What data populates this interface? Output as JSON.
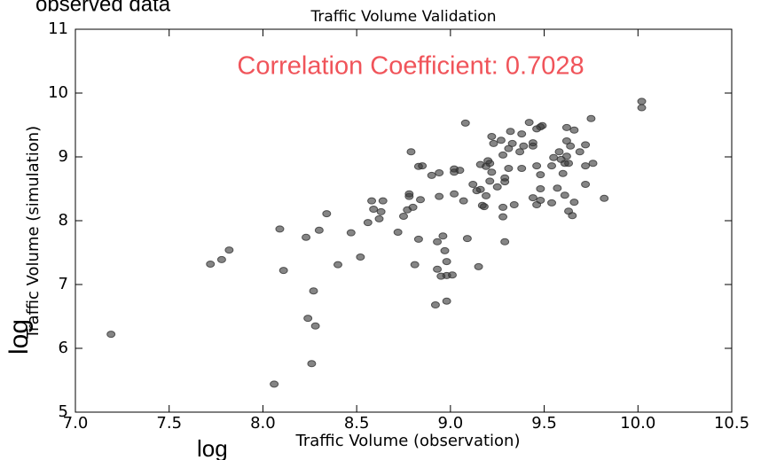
{
  "chart_data": {
    "type": "scatter",
    "caption": "observed data",
    "title": "Traffic Volume Validation",
    "annotation": "Correlation Coefficient: 0.7028",
    "annotation_color": "#f0545a",
    "xlabel": "Traffic Volume (observation)",
    "xlabel_prefix": "log",
    "ylabel": "Traffic Volume (simulation)",
    "ylabel_prefix": "log",
    "color": "#333333",
    "xlim": [
      7,
      10.5
    ],
    "ylim": [
      5,
      11
    ],
    "xticks": [
      {
        "value": 7,
        "label": "7.0"
      },
      7.5,
      {
        "value": 8,
        "label": "8.0"
      },
      8.5,
      {
        "value": 9,
        "label": "9.0"
      },
      9.5,
      {
        "value": 10,
        "label": "10.0"
      },
      10.5
    ],
    "yticks": [
      5,
      6,
      7,
      8,
      9,
      10,
      11
    ],
    "grid": false,
    "x": [
      7.19,
      7.72,
      7.78,
      7.82,
      8.09,
      8.11,
      8.06,
      8.23,
      8.24,
      8.26,
      8.27,
      8.28,
      8.3,
      8.34,
      8.4,
      8.47,
      8.52,
      8.56,
      8.58,
      8.59,
      8.63,
      8.64,
      8.62,
      8.72,
      8.75,
      8.77,
      8.78,
      8.78,
      8.8,
      8.79,
      8.81,
      8.83,
      8.85,
      8.83,
      8.84,
      8.9,
      8.92,
      8.93,
      8.93,
      8.94,
      8.94,
      8.95,
      8.96,
      8.97,
      8.98,
      8.98,
      8.98,
      9.01,
      9.02,
      9.02,
      9.02,
      9.05,
      9.07,
      9.08,
      9.09,
      9.12,
      9.14,
      9.15,
      9.16,
      9.16,
      9.17,
      9.18,
      9.19,
      9.19,
      9.2,
      9.21,
      9.22,
      9.22,
      9.21,
      9.23,
      9.25,
      9.27,
      9.28,
      9.28,
      9.28,
      9.29,
      9.29,
      9.29,
      9.31,
      9.31,
      9.32,
      9.33,
      9.34,
      9.37,
      9.38,
      9.38,
      9.39,
      9.42,
      9.44,
      9.44,
      9.44,
      9.46,
      9.46,
      9.46,
      9.48,
      9.48,
      9.48,
      9.49,
      9.48,
      9.54,
      9.54,
      9.55,
      9.57,
      9.58,
      9.59,
      9.6,
      9.61,
      9.61,
      9.62,
      9.62,
      9.62,
      9.63,
      9.63,
      9.64,
      9.65,
      9.66,
      9.66,
      9.69,
      9.72,
      9.72,
      9.75,
      9.76,
      9.72,
      9.82,
      10.02,
      10.02
    ],
    "values": [
      6.22,
      7.32,
      7.39,
      7.54,
      7.87,
      7.22,
      5.44,
      7.74,
      6.47,
      5.76,
      6.9,
      6.35,
      7.85,
      8.11,
      7.31,
      7.81,
      7.43,
      7.97,
      8.31,
      8.18,
      8.14,
      8.31,
      8.03,
      7.82,
      8.07,
      8.17,
      8.38,
      8.42,
      8.21,
      9.08,
      7.31,
      8.85,
      8.86,
      7.71,
      8.33,
      8.71,
      6.68,
      7.67,
      7.24,
      8.38,
      8.75,
      7.13,
      7.76,
      7.53,
      7.36,
      6.74,
      7.14,
      7.15,
      8.81,
      8.76,
      8.42,
      8.79,
      8.31,
      9.53,
      7.72,
      8.57,
      8.47,
      7.28,
      8.88,
      8.49,
      8.24,
      8.22,
      8.39,
      8.85,
      8.94,
      8.9,
      8.76,
      9.32,
      8.62,
      9.21,
      8.53,
      9.26,
      8.06,
      9.03,
      8.21,
      8.67,
      8.61,
      7.67,
      8.82,
      9.13,
      9.4,
      9.21,
      8.25,
      9.08,
      8.82,
      9.36,
      9.17,
      9.54,
      8.36,
      9.17,
      9.22,
      8.25,
      9.44,
      8.86,
      8.5,
      8.32,
      9.47,
      9.49,
      8.72,
      8.28,
      8.86,
      8.99,
      8.51,
      9.08,
      8.96,
      8.74,
      8.9,
      8.4,
      9.01,
      9.25,
      9.46,
      8.15,
      8.9,
      9.17,
      8.08,
      9.42,
      8.29,
      9.08,
      8.86,
      9.19,
      9.6,
      8.9,
      8.57,
      8.35,
      9.87,
      9.77
    ]
  }
}
